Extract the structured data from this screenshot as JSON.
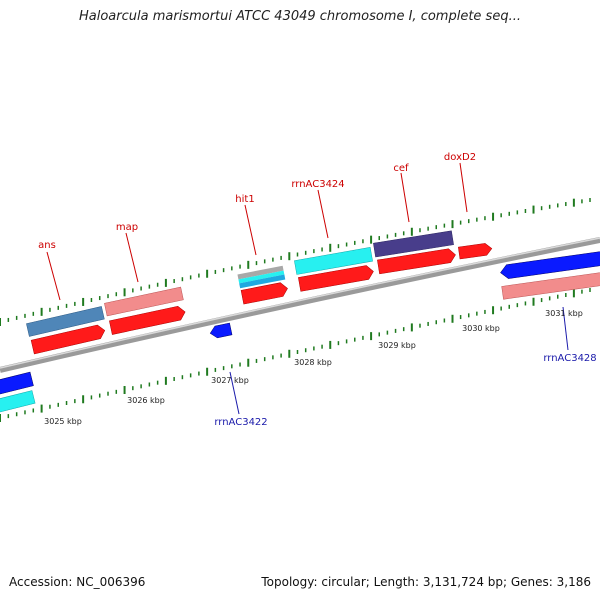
{
  "title": "Haloarcula marismortui ATCC 43049 chromosome I, complete seq...",
  "footer": {
    "accession": "Accession: NC_006396",
    "topology": "Topology: circular; Length: 3,131,724 bp; Genes: 3,186"
  },
  "colors": {
    "backbone": "#888888",
    "tick": "#1f7a1f",
    "cds_red": "#ff1a1a",
    "cds_pink": "#f28c8c",
    "cds_steel": "#4f86b8",
    "cds_cyan": "#27f0f0",
    "cds_purple": "#483d8b",
    "cds_blue": "#0a1aff",
    "label_red": "#cc0000",
    "label_blue": "#1a1aaa"
  },
  "scale_labels": [
    "3025 kbp",
    "3026 kbp",
    "3027 kbp",
    "3028 kbp",
    "3029 kbp",
    "3030 kbp",
    "3031 kbp"
  ],
  "gene_labels": {
    "ans": "ans",
    "map": "map",
    "hit1": "hit1",
    "rrnAC3424": "rrnAC3424",
    "cef": "cef",
    "doxD2": "doxD2",
    "rrnAC3422": "rrnAC3422",
    "rrnAC3428": "rrnAC3428"
  }
}
